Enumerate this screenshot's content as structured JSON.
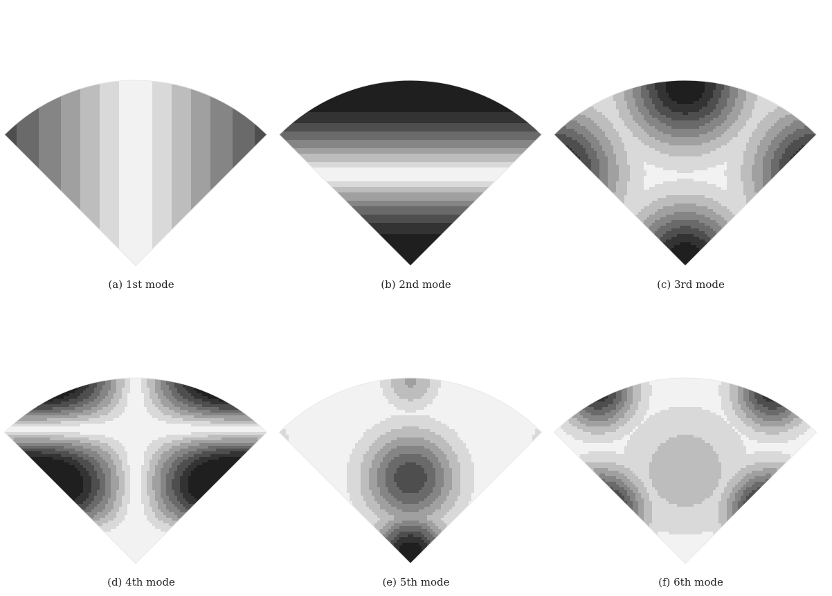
{
  "figure": {
    "panels": [
      {
        "id": "a",
        "caption": "(a) 1st mode"
      },
      {
        "id": "b",
        "caption": "(b) 2nd mode"
      },
      {
        "id": "c",
        "caption": "(c) 3rd mode"
      },
      {
        "id": "d",
        "caption": "(d) 4th mode"
      },
      {
        "id": "e",
        "caption": "(e) 5th mode"
      },
      {
        "id": "f",
        "caption": "(f) 6th mode"
      }
    ],
    "colormap": [
      "#f2f2f2",
      "#d9d9d9",
      "#bdbdbd",
      "#a0a0a0",
      "#858585",
      "#6a6a6a",
      "#4e4e4e",
      "#333333",
      "#1f1f1f"
    ]
  }
}
